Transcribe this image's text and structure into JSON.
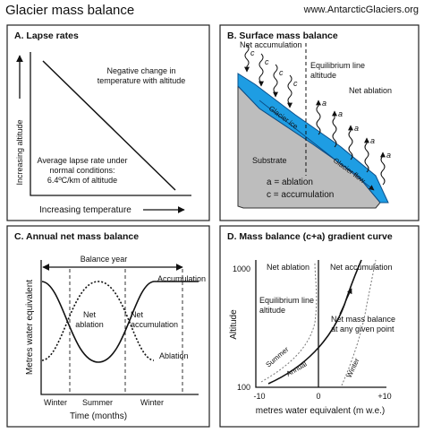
{
  "header": {
    "title": "Glacier mass balance",
    "source": "www.AntarcticGlaciers.org"
  },
  "panels": [
    {
      "title": "A. Lapse rates",
      "y_axis": "Increasing altitude",
      "x_axis": "Increasing temperature",
      "note_top": [
        "Negative change in",
        "temperature with altitude"
      ],
      "note_bottom": [
        "Average lapse rate under",
        "normal conditions:",
        "6.4ºC/km of altitude"
      ]
    },
    {
      "title": "B. Surface mass balance",
      "net_accumulation": "Net accumulation",
      "ela": [
        "Equilibrium line",
        "altitude"
      ],
      "net_ablation": "Net ablation",
      "glacier_ice": "Glacier ice",
      "glacier_flow": "Glacier flow",
      "substrate": "Substrate",
      "marker_c": "c",
      "marker_a": "a",
      "legend": [
        "a = ablation",
        "c = accumulation"
      ]
    },
    {
      "title": "C. Annual net mass balance",
      "period": "Balance year",
      "curves": [
        "Accumulation",
        "Ablation"
      ],
      "net_ablation": [
        "Net",
        "ablation"
      ],
      "net_accumulation": [
        "Net",
        "accumulation"
      ],
      "y_axis": "Metres water equivalent",
      "seasons": [
        "Winter",
        "Summer",
        "Winter"
      ],
      "x_axis": "Time (months)"
    },
    {
      "title": "D. Mass balance (c+a) gradient curve",
      "y_ticks": [
        "1000",
        "100"
      ],
      "y_axis": "Altitude",
      "x_ticks": [
        "-10",
        "0",
        "+10"
      ],
      "x_axis": "metres water equivalent (m w.e.)",
      "zones": [
        "Net ablation",
        "Net accumulation"
      ],
      "ela": [
        "Equilibrium line",
        "altitude"
      ],
      "callout": [
        "Net mass balance",
        "at any given point"
      ],
      "curves": [
        "Summer",
        "Annual",
        "Winter"
      ]
    }
  ]
}
